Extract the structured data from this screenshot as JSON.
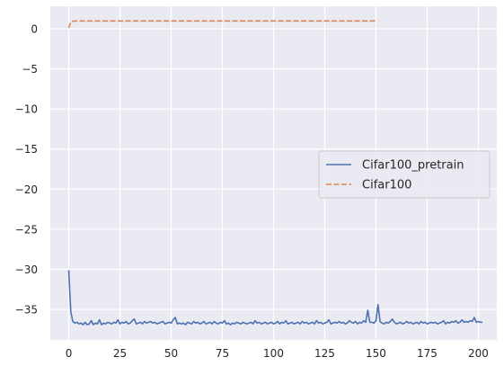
{
  "chart_data": {
    "type": "line",
    "title": "",
    "xlabel": "",
    "ylabel": "",
    "xlim": [
      -9,
      209
    ],
    "ylim": [
      -38.8,
      2.8
    ],
    "xticks": [
      0,
      25,
      50,
      75,
      100,
      125,
      150,
      175,
      200
    ],
    "yticks": [
      0,
      -5,
      -10,
      -15,
      -20,
      -25,
      -30,
      -35
    ],
    "grid": true,
    "background_color": "#eaeaf2",
    "grid_color": "#ffffff",
    "legend_position": "center-right",
    "series": [
      {
        "name": "Cifar100_pretrain",
        "color": "#4c72b0",
        "style": "solid",
        "x_start": 0,
        "x_step": 1,
        "values": [
          -30.1,
          -35.3,
          -36.5,
          -36.7,
          -36.6,
          -36.8,
          -36.7,
          -36.9,
          -36.6,
          -36.9,
          -36.8,
          -36.4,
          -36.9,
          -36.7,
          -36.8,
          -36.3,
          -36.9,
          -36.7,
          -36.8,
          -36.6,
          -36.7,
          -36.8,
          -36.6,
          -36.7,
          -36.3,
          -36.8,
          -36.6,
          -36.7,
          -36.5,
          -36.8,
          -36.7,
          -36.4,
          -36.2,
          -36.8,
          -36.7,
          -36.6,
          -36.8,
          -36.5,
          -36.7,
          -36.6,
          -36.5,
          -36.7,
          -36.6,
          -36.8,
          -36.7,
          -36.6,
          -36.5,
          -36.8,
          -36.7,
          -36.6,
          -36.7,
          -36.3,
          -36.0,
          -36.8,
          -36.7,
          -36.8,
          -36.7,
          -36.9,
          -36.6,
          -36.7,
          -36.8,
          -36.5,
          -36.7,
          -36.6,
          -36.8,
          -36.7,
          -36.5,
          -36.8,
          -36.7,
          -36.6,
          -36.8,
          -36.5,
          -36.7,
          -36.8,
          -36.6,
          -36.7,
          -36.4,
          -36.8,
          -36.7,
          -36.9,
          -36.7,
          -36.8,
          -36.6,
          -36.7,
          -36.8,
          -36.6,
          -36.7,
          -36.8,
          -36.7,
          -36.6,
          -36.8,
          -36.4,
          -36.7,
          -36.6,
          -36.8,
          -36.7,
          -36.6,
          -36.8,
          -36.7,
          -36.6,
          -36.8,
          -36.7,
          -36.5,
          -36.8,
          -36.6,
          -36.7,
          -36.4,
          -36.8,
          -36.7,
          -36.6,
          -36.8,
          -36.7,
          -36.6,
          -36.8,
          -36.5,
          -36.7,
          -36.6,
          -36.8,
          -36.7,
          -36.6,
          -36.8,
          -36.4,
          -36.7,
          -36.6,
          -36.8,
          -36.7,
          -36.6,
          -36.3,
          -36.8,
          -36.7,
          -36.6,
          -36.7,
          -36.5,
          -36.7,
          -36.6,
          -36.8,
          -36.7,
          -36.4,
          -36.6,
          -36.7,
          -36.5,
          -36.8,
          -36.6,
          -36.7,
          -36.4,
          -36.6,
          -35.1,
          -36.6,
          -36.6,
          -36.7,
          -36.4,
          -34.4,
          -36.5,
          -36.7,
          -36.8,
          -36.6,
          -36.7,
          -36.5,
          -36.2,
          -36.6,
          -36.8,
          -36.7,
          -36.6,
          -36.8,
          -36.7,
          -36.5,
          -36.7,
          -36.6,
          -36.8,
          -36.7,
          -36.6,
          -36.8,
          -36.5,
          -36.7,
          -36.6,
          -36.8,
          -36.7,
          -36.6,
          -36.7,
          -36.6,
          -36.8,
          -36.7,
          -36.6,
          -36.4,
          -36.8,
          -36.6,
          -36.7,
          -36.5,
          -36.6,
          -36.4,
          -36.7,
          -36.6,
          -36.3,
          -36.6,
          -36.5,
          -36.6,
          -36.4,
          -36.5,
          -36.0,
          -36.6,
          -36.5,
          -36.6,
          -36.6
        ]
      },
      {
        "name": "Cifar100",
        "color": "#dd8452",
        "style": "dashed",
        "x_start": 0,
        "x_step": 1,
        "values": [
          0.1,
          0.85,
          0.95,
          0.96,
          0.96,
          0.97,
          0.97,
          0.97,
          0.97,
          0.97,
          0.97,
          0.97,
          0.97,
          0.97,
          0.97,
          0.97,
          0.97,
          0.97,
          0.97,
          0.97,
          0.97,
          0.97,
          0.97,
          0.97,
          0.97,
          0.97,
          0.97,
          0.97,
          0.97,
          0.97,
          0.97,
          0.97,
          0.97,
          0.97,
          0.97,
          0.97,
          0.97,
          0.97,
          0.97,
          0.97,
          0.97,
          0.97,
          0.97,
          0.97,
          0.97,
          0.97,
          0.97,
          0.97,
          0.97,
          0.97,
          0.97,
          0.97,
          0.97,
          0.97,
          0.97,
          0.97,
          0.97,
          0.97,
          0.97,
          0.97,
          0.97,
          0.97,
          0.97,
          0.97,
          0.97,
          0.97,
          0.97,
          0.97,
          0.97,
          0.97,
          0.97,
          0.97,
          0.97,
          0.97,
          0.97,
          0.97,
          0.97,
          0.97,
          0.97,
          0.97,
          0.97,
          0.97,
          0.97,
          0.97,
          0.97,
          0.97,
          0.97,
          0.97,
          0.97,
          0.97,
          0.97,
          0.97,
          0.97,
          0.97,
          0.97,
          0.97,
          0.97,
          0.97,
          0.97,
          0.97,
          0.97,
          0.97,
          0.97,
          0.97,
          0.97,
          0.97,
          0.97,
          0.97,
          0.97,
          0.97,
          0.97,
          0.97,
          0.97,
          0.97,
          0.97,
          0.97,
          0.97,
          0.97,
          0.97,
          0.97,
          0.97,
          0.97,
          0.97,
          0.97,
          0.97,
          0.97,
          0.97,
          0.97,
          0.97,
          0.97,
          0.97,
          0.97,
          0.97,
          0.97,
          0.97,
          0.97,
          0.97,
          0.97,
          0.97,
          0.97,
          0.97,
          0.97,
          0.97,
          0.97,
          0.97,
          0.97,
          0.97,
          0.97,
          0.97,
          0.97,
          0.97
        ]
      }
    ]
  }
}
